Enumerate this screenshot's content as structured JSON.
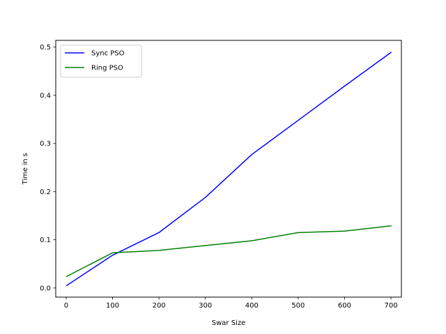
{
  "chart_data": {
    "type": "line",
    "xlabel": "Swar Size",
    "ylabel": "Time in s",
    "xlim": [
      -22.5,
      722.5
    ],
    "ylim": [
      -0.019,
      0.514
    ],
    "xticks": [
      0,
      100,
      200,
      300,
      400,
      500,
      600,
      700
    ],
    "xtick_labels": [
      "0",
      "100",
      "200",
      "300",
      "400",
      "500",
      "600",
      "700"
    ],
    "yticks": [
      0.0,
      0.1,
      0.2,
      0.3,
      0.4,
      0.5
    ],
    "ytick_labels": [
      "0.0",
      "0.1",
      "0.2",
      "0.3",
      "0.4",
      "0.5"
    ],
    "grid": false,
    "legend_position": "upper-left",
    "x": [
      1,
      100,
      200,
      300,
      400,
      500,
      600,
      700
    ],
    "series": [
      {
        "name": "Sync PSO",
        "color": "#0000ff",
        "values": [
          0.005,
          0.068,
          0.115,
          0.188,
          0.277,
          0.348,
          0.419,
          0.489
        ]
      },
      {
        "name": "Ring PSO",
        "color": "#008000",
        "values": [
          0.024,
          0.073,
          0.078,
          0.088,
          0.098,
          0.115,
          0.118,
          0.129
        ]
      }
    ]
  }
}
